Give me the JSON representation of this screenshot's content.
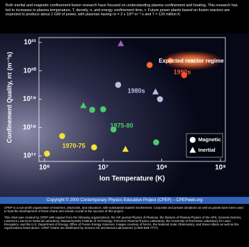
{
  "header": {
    "text": "Both inertial and magnetic confinement fusion research have focused on understanding plasma confinement and heating. This research has led to increases in plasma temperature, T, density, n, and energy confinement time, τ. Future power plants based on fusion reactors are expected to produce about 1 GW of power, with plasmas having nτ = 2 x 10²⁰ m⁻³ s and T = 120 million K."
  },
  "chart_data": {
    "type": "scatter",
    "x_label": "Ion Temperature (K)",
    "y_label": "Confinement Quality, nτ (m⁻³s)",
    "xscale": "log",
    "yscale": "log",
    "xlim": [
      1000000,
      1000000000
    ],
    "ylim": [
      1e+17,
      1e+21
    ],
    "xticks": [
      {
        "value": 1000000,
        "label": "10⁶"
      },
      {
        "value": 10000000,
        "label": "10⁷"
      },
      {
        "value": 100000000,
        "label": "10⁸"
      },
      {
        "value": 1000000000,
        "label": "10⁹"
      }
    ],
    "yticks": [
      {
        "value": 1e+17,
        "label": "10¹⁷"
      },
      {
        "value": 1e+18,
        "label": "10¹⁸"
      },
      {
        "value": 1e+19,
        "label": "10¹⁹"
      },
      {
        "value": 1e+20,
        "label": "10²⁰"
      },
      {
        "value": 1e+21,
        "label": "10²¹"
      }
    ],
    "legend": "bottom-right",
    "series": [
      {
        "name": "Magnetic",
        "marker": "circle",
        "color": "#ffffff",
        "x": [
          1100000,
          2000000,
          7000000,
          6500000,
          10000000,
          15000000,
          80000000,
          18000000,
          93000000,
          62000000,
          140000000,
          240000000
        ],
        "values": [
          1.2e+17,
          5e+17,
          2e+17,
          4.2e+18,
          4.4e+18,
          8.5e+17,
          3e+17,
          3.2e+19,
          1e+19,
          1.6e+20,
          2.3e+20,
          7e+19
        ],
        "colors": [
          "#f6e03a",
          "#f6e03a",
          "#f6e03a",
          "#4fc96a",
          "#4fc96a",
          "#4fc96a",
          "#4fc96a",
          "#b7bfe8",
          "#b7bfe8",
          "#ff6a2e",
          "#ff6a2e",
          "#ff4a2a"
        ]
      },
      {
        "name": "Inertial",
        "marker": "triangle",
        "color": "#ffffff",
        "x": [
          24000000,
          4600000,
          78000000,
          20000000
        ],
        "values": [
          1.7e+17,
          5.9e+18,
          1.8e+19,
          9e+20
        ],
        "colors": [
          "#f6e03a",
          "#4fc96a",
          "#b7bfe8",
          "#9a5fd0"
        ]
      }
    ],
    "annotations": [
      {
        "text": "1990s",
        "color": "#ff5a2a"
      },
      {
        "text": "1980s",
        "color": "#b7bfe8"
      },
      {
        "text": "1975-80",
        "color": "#4fc96a"
      },
      {
        "text": "1970-75",
        "color": "#f6e03a"
      },
      {
        "text": "Expected reactor regime",
        "color": "#ffffff"
      }
    ]
  },
  "footer": {
    "copyright": "Copyright © 2000 Contemporary Physics Education Project (CPEP) – CPEPweb.org",
    "paragraphs": [
      "CPEP is a non-profit organization of teachers, physicists, and educators, with substantial student involvement. Corporate and private donations as well as grants have been used to fund the development of these charts and remain crucial to the success of this project.",
      "This chart was created by CPEP with support from the following organizations: the AIP journal Physics of Plasmas, the Division of Plasma Physics of the APS, General Atomics, Lawrence Livermore National Laboratory, Massachusetts Institute of Technology, Princeton Plasma Physics Laboratory, the University of Rochester Laboratory for Laser Energetics, and the U.S. Department of Energy, Office of Fusion Energy Sciences. Images courtesy of NASA, the National Solar Observatory, and Steve Albers as well as the organizations listed above. CPEP Charts are distributed by Science Kit and Boreal Laboratories (1-800-828-7777)."
    ]
  }
}
